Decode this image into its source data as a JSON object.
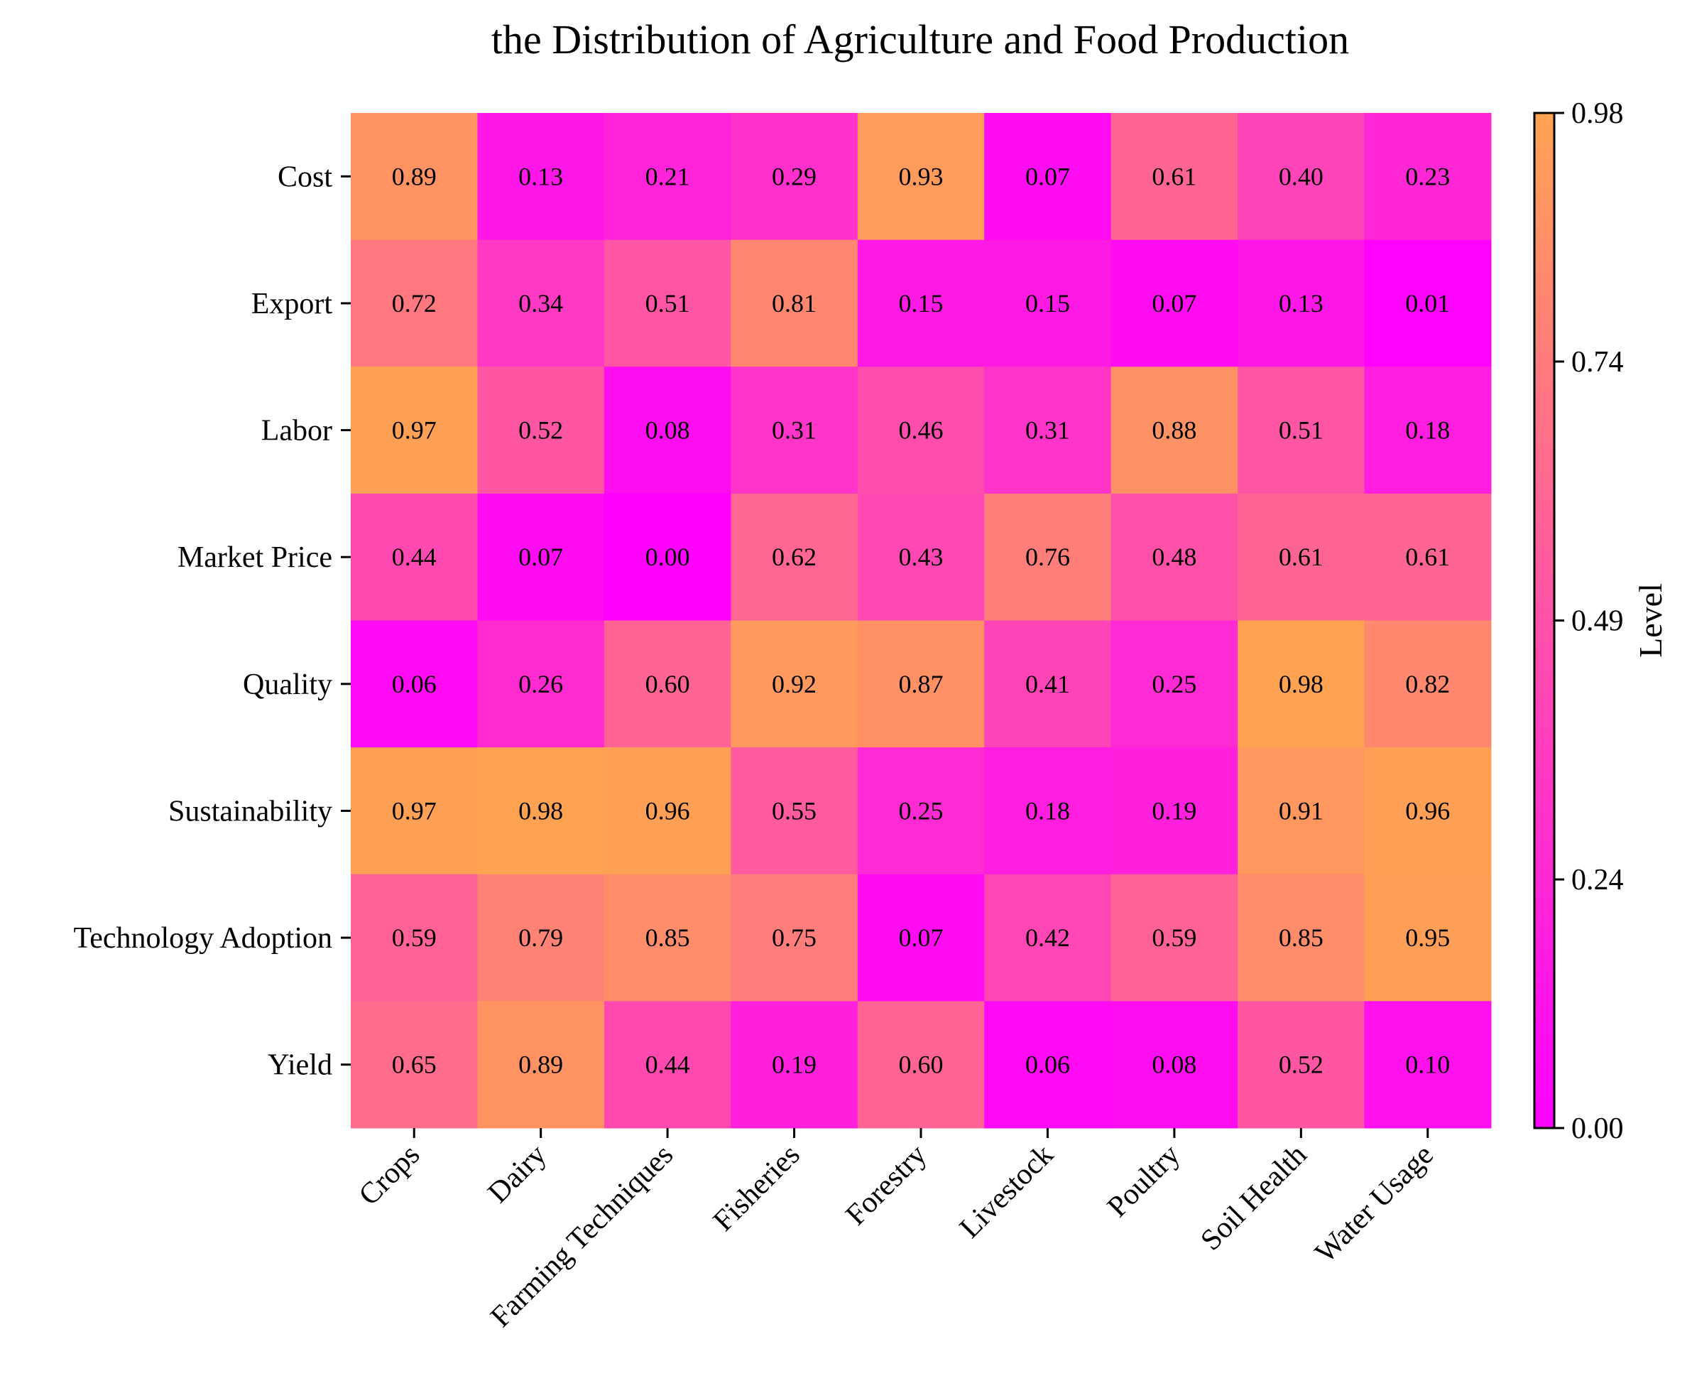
{
  "chart_data": {
    "type": "heatmap",
    "title": "the Distribution of Agriculture and Food Production",
    "x_categories": [
      "Crops",
      "Dairy",
      "Farming Techniques",
      "Fisheries",
      "Forestry",
      "Livestock",
      "Poultry",
      "Soil Health",
      "Water Usage"
    ],
    "y_categories": [
      "Cost",
      "Export",
      "Labor",
      "Market Price",
      "Quality",
      "Sustainability",
      "Technology Adoption",
      "Yield"
    ],
    "values": [
      [
        0.89,
        0.13,
        0.21,
        0.29,
        0.93,
        0.07,
        0.61,
        0.4,
        0.23
      ],
      [
        0.72,
        0.34,
        0.51,
        0.81,
        0.15,
        0.15,
        0.07,
        0.13,
        0.01
      ],
      [
        0.97,
        0.52,
        0.08,
        0.31,
        0.46,
        0.31,
        0.88,
        0.51,
        0.18
      ],
      [
        0.44,
        0.07,
        0.0,
        0.62,
        0.43,
        0.76,
        0.48,
        0.61,
        0.61
      ],
      [
        0.06,
        0.26,
        0.6,
        0.92,
        0.87,
        0.41,
        0.25,
        0.98,
        0.82
      ],
      [
        0.97,
        0.98,
        0.96,
        0.55,
        0.25,
        0.18,
        0.19,
        0.91,
        0.96
      ],
      [
        0.59,
        0.79,
        0.85,
        0.75,
        0.07,
        0.42,
        0.59,
        0.85,
        0.95
      ],
      [
        0.65,
        0.89,
        0.44,
        0.19,
        0.6,
        0.06,
        0.08,
        0.52,
        0.1
      ]
    ],
    "value_labels": [
      [
        "0.89",
        "0.13",
        "0.21",
        "0.29",
        "0.93",
        "0.07",
        "0.61",
        "0.40",
        "0.23"
      ],
      [
        "0.72",
        "0.34",
        "0.51",
        "0.81",
        "0.15",
        "0.15",
        "0.07",
        "0.13",
        "0.01"
      ],
      [
        "0.97",
        "0.52",
        "0.08",
        "0.31",
        "0.46",
        "0.31",
        "0.88",
        "0.51",
        "0.18"
      ],
      [
        "0.44",
        "0.07",
        "0.00",
        "0.62",
        "0.43",
        "0.76",
        "0.48",
        "0.61",
        "0.61"
      ],
      [
        "0.06",
        "0.26",
        "0.60",
        "0.92",
        "0.87",
        "0.41",
        "0.25",
        "0.98",
        "0.82"
      ],
      [
        "0.97",
        "0.98",
        "0.96",
        "0.55",
        "0.25",
        "0.18",
        "0.19",
        "0.91",
        "0.96"
      ],
      [
        "0.59",
        "0.79",
        "0.85",
        "0.75",
        "0.07",
        "0.42",
        "0.59",
        "0.85",
        "0.95"
      ],
      [
        "0.65",
        "0.89",
        "0.44",
        "0.19",
        "0.60",
        "0.06",
        "0.08",
        "0.52",
        "0.10"
      ]
    ],
    "colorbar": {
      "label": "Level",
      "range": [
        0.0,
        0.98
      ],
      "ticks": [
        0.0,
        0.24,
        0.49,
        0.74,
        0.98
      ],
      "tick_labels": [
        "0.00",
        "0.24",
        "0.49",
        "0.74",
        "0.98"
      ],
      "color_min": "#ff00ff",
      "color_max": "#ffa352"
    },
    "grid": false
  }
}
